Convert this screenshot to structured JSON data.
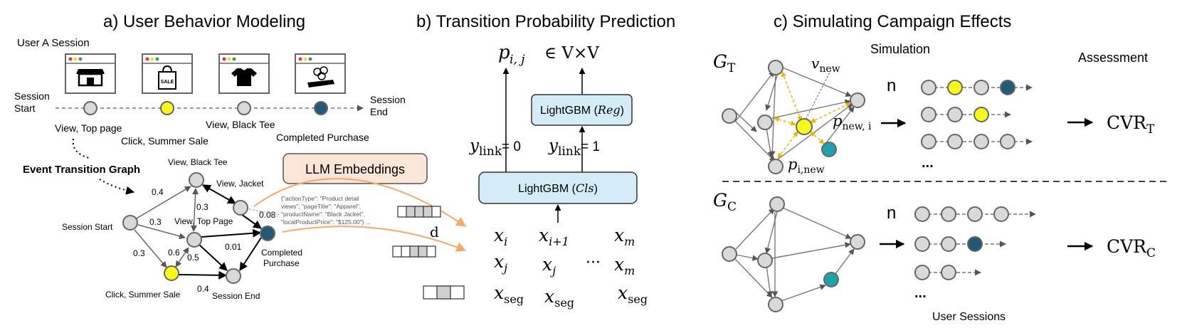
{
  "panel_a": {
    "title": "a)  User Behavior Modeling",
    "session_label": "User A Session",
    "session_start": [
      "Session",
      "Start"
    ],
    "session_end": [
      "Session",
      "End"
    ],
    "sale_text": "SALE",
    "events": [
      "View, Top page",
      "Click, Summer Sale",
      "View, Black Tee",
      "Completed Purchase"
    ],
    "graph_title": "Event Transition Graph",
    "graph_nodes": {
      "start": "Session Start",
      "black_tee": "View, Black Tee",
      "jacket": "View, Jacket",
      "top_page": "View, Top Page",
      "purchase": [
        "Completed",
        "Purchase"
      ],
      "sale": "Click, Summer Sale",
      "end": "Session End"
    },
    "edge_labels": [
      "0.4",
      "0.3",
      "0.3",
      "0.3",
      "0.6",
      "0.5",
      "0.01",
      "0.08",
      "0.4"
    ],
    "json_snippet": [
      "{\"actionType\": \"Product detail",
      "views\", \"pageTitle\": \"Apparel\",",
      "\"productName\": \"Black Jacket\",",
      "\"localProductPrice\": \"$125.00\"} ..."
    ]
  },
  "panel_b": {
    "title": "b)  Transition Probability Prediction",
    "llm_label": "LLM Embeddings",
    "output": {
      "p": "p",
      "sub": "i, j",
      "rest": "∈ V×V"
    },
    "reg_box": {
      "main": "LightGBM (",
      "it": "Reg",
      "close": ")"
    },
    "cls_box": {
      "main": "LightGBM (",
      "it": "Cls",
      "close": ")"
    },
    "ylink0": {
      "y": "y",
      "sub": "link",
      "val": " = 0"
    },
    "ylink1": {
      "y": "y",
      "sub": "link",
      "val": " = 1"
    },
    "d_label": "d",
    "row1": [
      {
        "x": "x",
        "s": "i"
      },
      {
        "x": "x",
        "s": "i+1"
      },
      {
        "x": "x",
        "s": "m"
      }
    ],
    "row2": [
      {
        "x": "x",
        "s": "j"
      },
      {
        "x": "x",
        "s": "j"
      },
      {
        "x": "x",
        "s": "m"
      }
    ],
    "row3": [
      {
        "x": "x",
        "s": "seg"
      },
      {
        "x": "x",
        "s": "seg"
      },
      {
        "x": "x",
        "s": "seg"
      }
    ],
    "dots": "···"
  },
  "panel_c": {
    "title": "c)  Simulating Campaign Effects",
    "simulation": "Simulation",
    "assessment": "Assessment",
    "gt": {
      "g": "G",
      "s": "T"
    },
    "gc": {
      "g": "G",
      "s": "C"
    },
    "vnew": {
      "v": "v",
      "s": "new"
    },
    "pnewi": {
      "p": "p",
      "s": "new, i"
    },
    "pinew": {
      "p": "p",
      "s": "i,new"
    },
    "n_label": "n",
    "cvr_t": {
      "t": "CVR",
      "s": "T"
    },
    "cvr_c": {
      "t": "CVR",
      "s": "C"
    },
    "ellipsis": "...",
    "user_sessions": "User Sessions"
  },
  "colors": {
    "node_gray": "#d9d9d9",
    "node_yellow": "#f7f71a",
    "node_teal": "#1aa3ab",
    "node_navy": "#1f5a7a",
    "box_blue": "#d4ecf7",
    "llm_fill": "#fbe5d6",
    "orange": "#f4a96a",
    "gold": "#f0b400"
  }
}
